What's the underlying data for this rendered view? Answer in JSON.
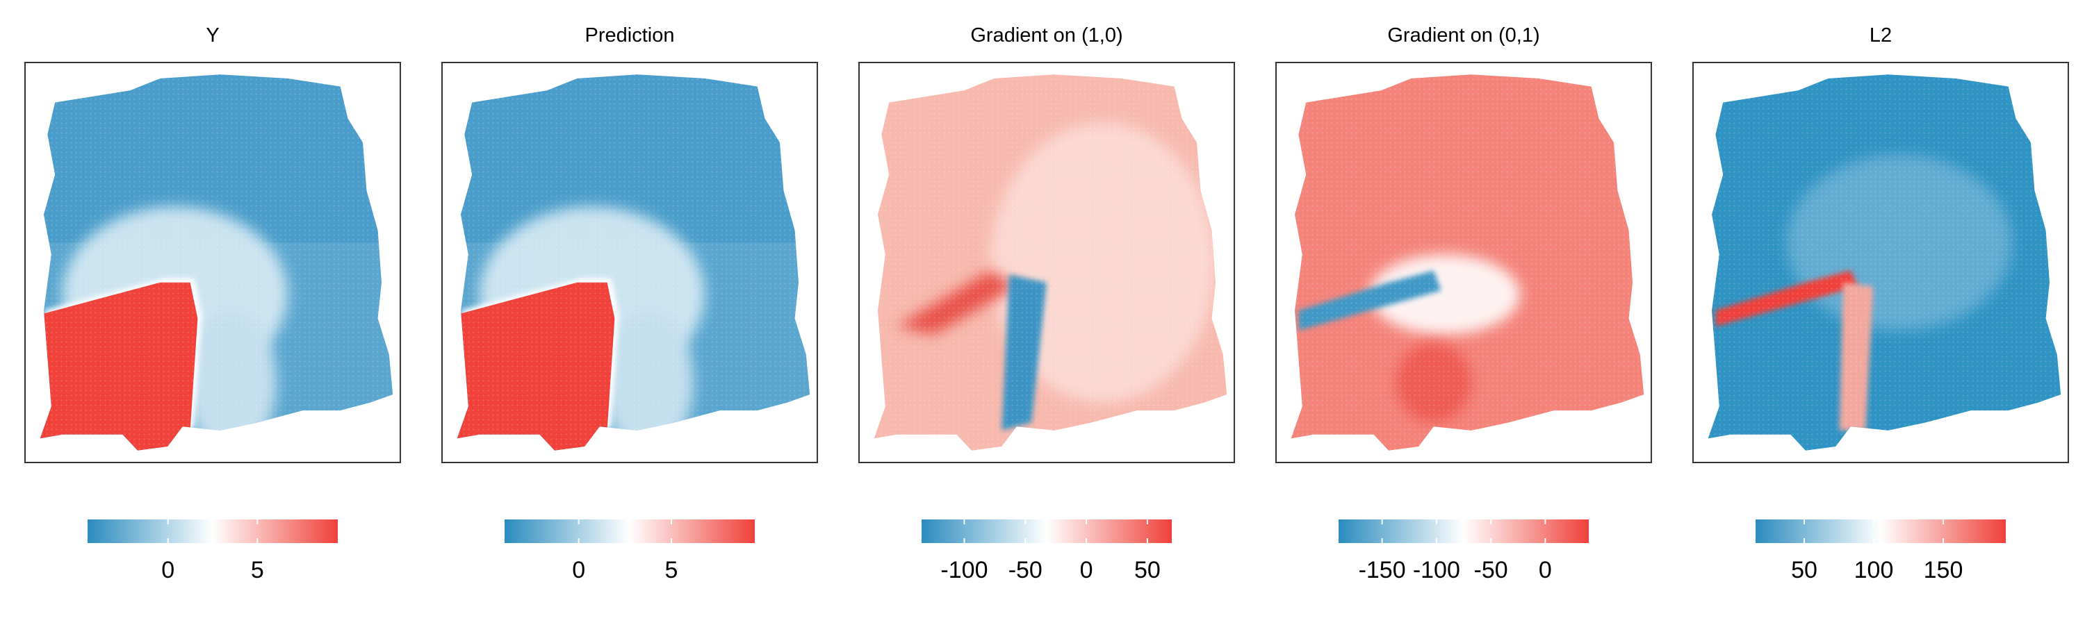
{
  "figure": {
    "colors": {
      "low": "#2b8cbe",
      "mid": "#ffffff",
      "high": "#f0413a"
    }
  },
  "chart_data": [
    {
      "type": "heatmap",
      "title": "Y",
      "colorbar": {
        "range": [
          -4.5,
          9.5
        ],
        "ticks": [
          0,
          5
        ],
        "tick_labels": [
          "0",
          "5"
        ]
      },
      "regions": [
        {
          "name": "background",
          "level": "low"
        },
        {
          "name": "L-shaped region (lower-left)",
          "level": "high"
        }
      ]
    },
    {
      "type": "heatmap",
      "title": "Prediction",
      "colorbar": {
        "range": [
          -4,
          9.5
        ],
        "ticks": [
          0,
          5
        ],
        "tick_labels": [
          "0",
          "5"
        ]
      },
      "regions": [
        {
          "name": "background",
          "level": "low"
        },
        {
          "name": "L-shaped region (lower-left)",
          "level": "high"
        }
      ]
    },
    {
      "type": "heatmap",
      "title": "Gradient on (1,0)",
      "colorbar": {
        "range": [
          -135,
          70
        ],
        "ticks": [
          -100,
          -50,
          0,
          50
        ],
        "tick_labels": [
          "-100",
          "-50",
          "0",
          "50"
        ]
      },
      "regions": [
        {
          "name": "background",
          "level": "slightly positive"
        },
        {
          "name": "vertical boundary band",
          "level": "low"
        },
        {
          "name": "horizontal boundary band",
          "level": "high"
        }
      ]
    },
    {
      "type": "heatmap",
      "title": "Gradient on (0,1)",
      "colorbar": {
        "range": [
          -190,
          40
        ],
        "ticks": [
          -150,
          -100,
          -50,
          0
        ],
        "tick_labels": [
          "-150",
          "-100",
          "-50",
          "0"
        ]
      },
      "regions": [
        {
          "name": "background",
          "level": "high"
        },
        {
          "name": "horizontal boundary band",
          "level": "low"
        }
      ]
    },
    {
      "type": "heatmap",
      "title": "L2",
      "colorbar": {
        "range": [
          15,
          195
        ],
        "ticks": [
          50,
          100,
          150
        ],
        "tick_labels": [
          "50",
          "100",
          "150"
        ]
      },
      "regions": [
        {
          "name": "background",
          "level": "low"
        },
        {
          "name": "L-shaped boundary band",
          "level": "high"
        }
      ]
    }
  ]
}
